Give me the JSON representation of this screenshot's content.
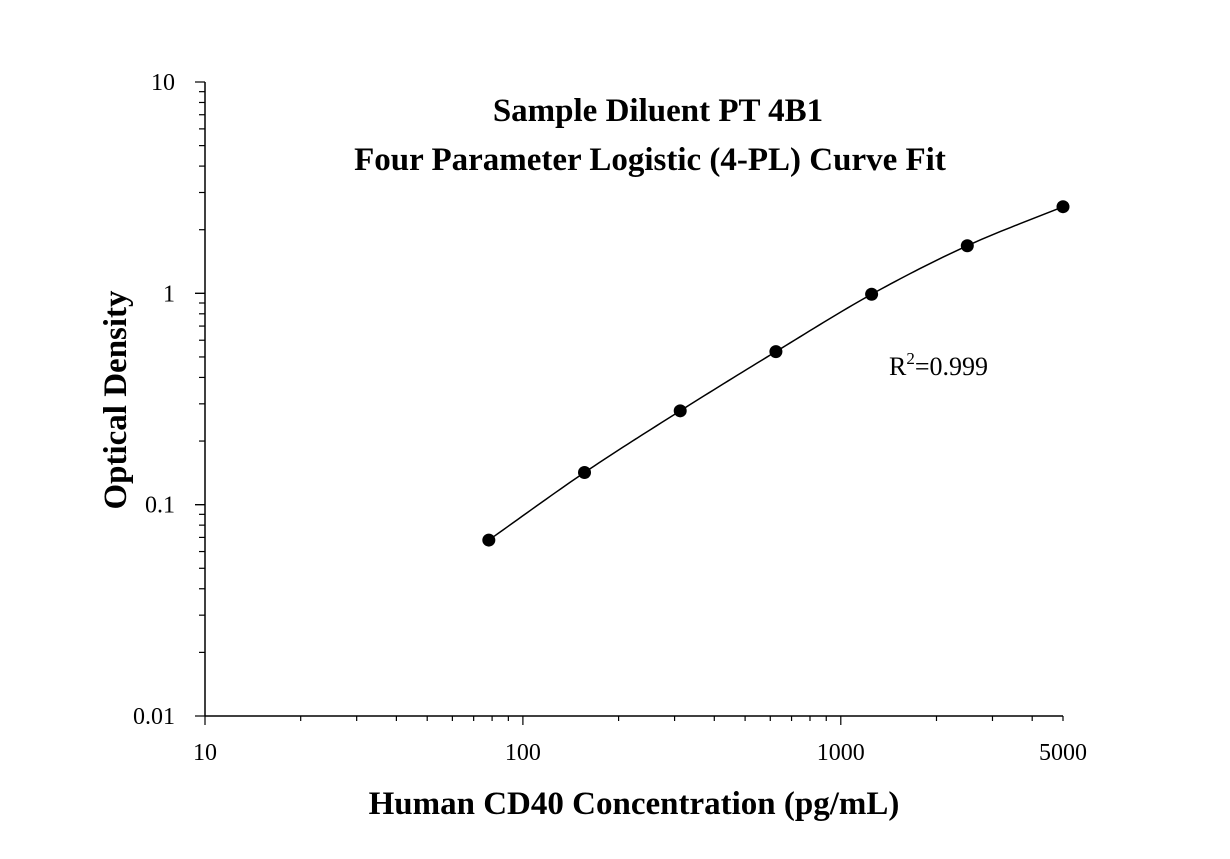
{
  "chart_data": {
    "type": "scatter",
    "title": [
      "Sample Diluent PT 4B1",
      "Four Parameter Logistic (4-PL) Curve Fit"
    ],
    "xlabel": "Human CD40 Concentration (pg/mL)",
    "ylabel": "Optical Density",
    "x_scale": "log",
    "y_scale": "log",
    "xlim": [
      10,
      5000
    ],
    "ylim": [
      0.01,
      10
    ],
    "x_ticks": [
      {
        "value": 10,
        "label": "10"
      },
      {
        "value": 100,
        "label": "100"
      },
      {
        "value": 1000,
        "label": "1000"
      },
      {
        "value": 5000,
        "label": "5000"
      }
    ],
    "y_ticks": [
      {
        "value": 0.01,
        "label": "0.01"
      },
      {
        "value": 0.1,
        "label": "0.1"
      },
      {
        "value": 1,
        "label": "1"
      },
      {
        "value": 10,
        "label": "10"
      }
    ],
    "grid": false,
    "legend": "none",
    "series": [
      {
        "marker": "circle",
        "line": "4-PL fit",
        "x": [
          78.125,
          156.25,
          312.5,
          625,
          1250,
          2500,
          5000
        ],
        "y": [
          0.068,
          0.142,
          0.278,
          0.53,
          0.99,
          1.68,
          2.57
        ]
      }
    ],
    "annotation": {
      "base": "R",
      "sup": "2",
      "rest": "=0.999"
    },
    "colors": {
      "axis": "#000000",
      "marker": "#000000",
      "line": "#000000"
    }
  }
}
